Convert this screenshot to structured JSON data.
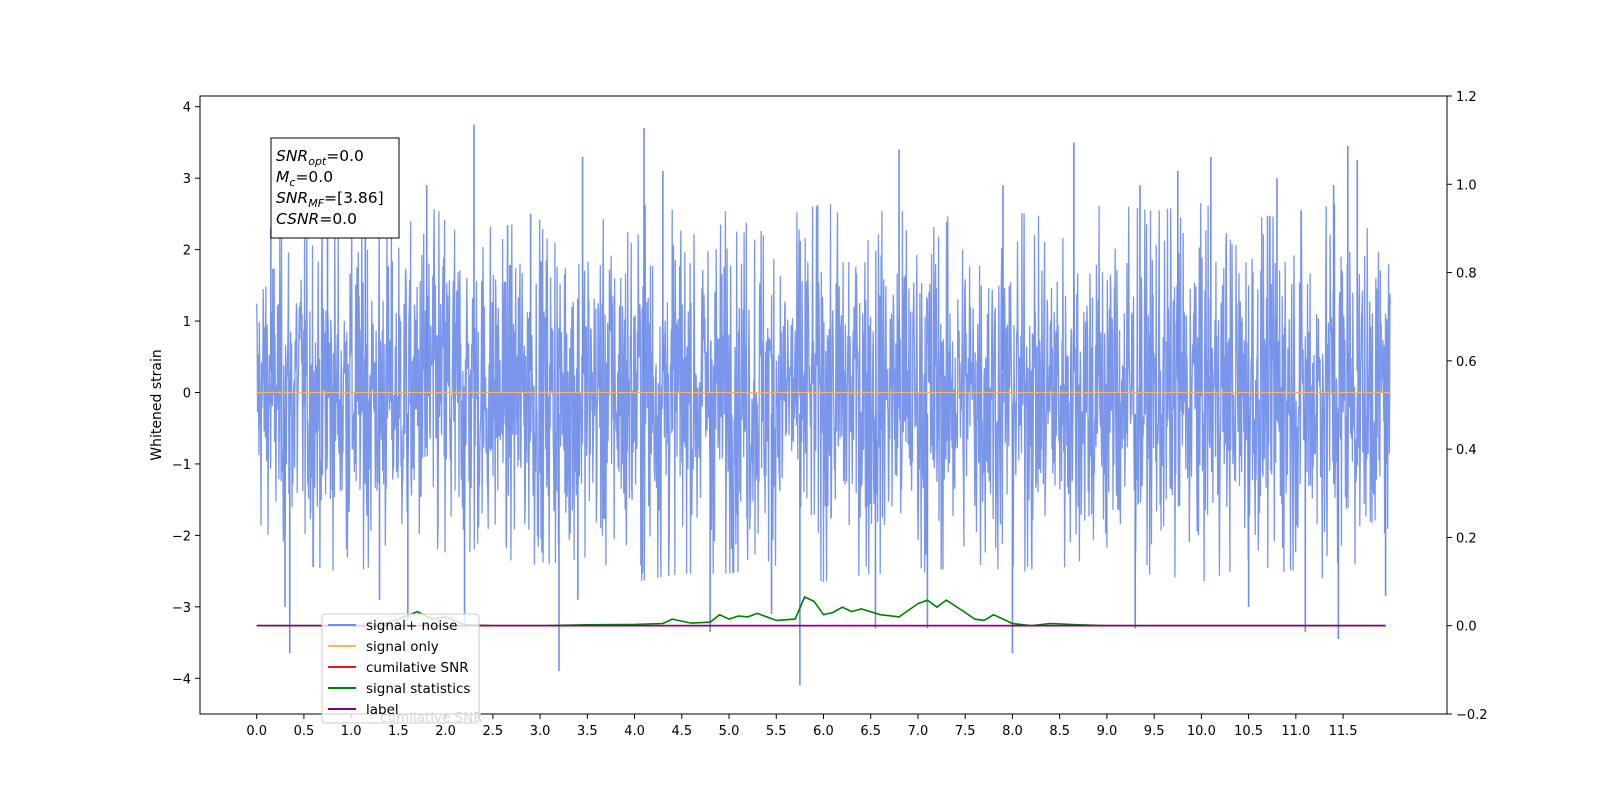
{
  "chart_data": {
    "type": "line",
    "ylabel": "Whitened strain",
    "xlabel": "",
    "xlim": [
      -0.6,
      12.6
    ],
    "ylim": [
      -4.5,
      4.15
    ],
    "y2lim": [
      -0.2,
      1.2
    ],
    "x_ticks": [
      0.0,
      0.5,
      1.0,
      1.5,
      2.0,
      2.5,
      3.0,
      3.5,
      4.0,
      4.5,
      5.0,
      5.5,
      6.0,
      6.5,
      7.0,
      7.5,
      8.0,
      8.5,
      9.0,
      9.5,
      10.0,
      10.5,
      11.0,
      11.5
    ],
    "x_tick_labels": [
      "0.0",
      "0.5",
      "1.0",
      "1.5",
      "2.0",
      "2.5",
      "3.0",
      "3.5",
      "4.0",
      "4.5",
      "5.0",
      "5.5",
      "6.0",
      "6.5",
      "7.0",
      "7.5",
      "8.0",
      "8.5",
      "9.0",
      "9.5",
      "10.0",
      "10.5",
      "11.0",
      "11.5"
    ],
    "y_ticks": [
      4,
      3,
      2,
      1,
      0,
      -1,
      -2,
      -3,
      -4
    ],
    "y_tick_labels": [
      "4",
      "3",
      "2",
      "1",
      "0",
      "−1",
      "−2",
      "−3",
      "−4"
    ],
    "y2_ticks": [
      1.2,
      1.0,
      0.8,
      0.6,
      0.4,
      0.2,
      0.0,
      -0.2
    ],
    "y2_tick_labels": [
      "1.2",
      "1.0",
      "0.8",
      "0.6",
      "0.4",
      "0.2",
      "0.0",
      "−0.2"
    ],
    "annotation": {
      "lines": [
        {
          "base": "SNR",
          "sub": "opt",
          "rest": "=0.0"
        },
        {
          "base": "M",
          "sub": "c",
          "rest": "=0.0"
        },
        {
          "base": "SNR",
          "sub": "MF",
          "rest": "=[3.86]"
        },
        {
          "base": "CSNR",
          "sub": "",
          "rest": "=0.0"
        }
      ]
    },
    "series": [
      {
        "name": "signal+ noise",
        "axis": "left",
        "color": "#6f8de8",
        "description": "dense noisy trace between about -2.5 and 2.5 with spikes",
        "envelope_upper": [
          [
            0.0,
            1.7
          ],
          [
            0.5,
            2.1
          ],
          [
            1.0,
            2.2
          ],
          [
            1.5,
            2.0
          ],
          [
            2.0,
            2.3
          ],
          [
            2.5,
            2.0
          ],
          [
            3.0,
            2.1
          ],
          [
            3.5,
            2.0
          ],
          [
            4.0,
            2.3
          ],
          [
            4.5,
            2.2
          ],
          [
            5.0,
            2.2
          ],
          [
            5.5,
            2.1
          ],
          [
            6.0,
            2.3
          ],
          [
            6.5,
            2.2
          ],
          [
            7.0,
            2.2
          ],
          [
            7.5,
            2.1
          ],
          [
            8.0,
            2.2
          ],
          [
            8.5,
            2.1
          ],
          [
            9.0,
            2.3
          ],
          [
            9.5,
            2.2
          ],
          [
            10.0,
            2.3
          ],
          [
            10.5,
            2.1
          ],
          [
            11.0,
            2.2
          ],
          [
            11.5,
            2.3
          ],
          [
            12.0,
            1.7
          ]
        ],
        "spikes_up": [
          [
            0.15,
            2.3
          ],
          [
            0.75,
            2.4
          ],
          [
            1.15,
            2.2
          ],
          [
            1.8,
            2.9
          ],
          [
            2.3,
            3.75
          ],
          [
            2.9,
            2.5
          ],
          [
            3.45,
            3.3
          ],
          [
            4.1,
            3.7
          ],
          [
            4.3,
            3.1
          ],
          [
            6.8,
            3.4
          ],
          [
            7.9,
            2.9
          ],
          [
            8.65,
            3.5
          ],
          [
            9.35,
            2.9
          ],
          [
            9.75,
            3.1
          ],
          [
            10.1,
            3.3
          ],
          [
            10.8,
            3.0
          ],
          [
            11.4,
            2.9
          ],
          [
            11.55,
            3.45
          ],
          [
            11.65,
            3.25
          ]
        ],
        "spikes_down": [
          [
            0.35,
            -3.65
          ],
          [
            0.3,
            -3.0
          ],
          [
            1.3,
            -2.9
          ],
          [
            1.6,
            -3.2
          ],
          [
            2.2,
            -3.3
          ],
          [
            3.2,
            -3.9
          ],
          [
            3.4,
            -2.9
          ],
          [
            4.8,
            -3.35
          ],
          [
            5.75,
            -4.1
          ],
          [
            5.45,
            -3.1
          ],
          [
            6.55,
            -3.3
          ],
          [
            7.1,
            -3.3
          ],
          [
            8.0,
            -3.65
          ],
          [
            9.3,
            -3.3
          ],
          [
            10.5,
            -3.0
          ],
          [
            11.1,
            -3.35
          ],
          [
            11.45,
            -3.45
          ],
          [
            11.95,
            -2.85
          ]
        ]
      },
      {
        "name": "signal only",
        "axis": "left",
        "color": "#ffb55a",
        "points": [
          [
            0.0,
            0.0
          ],
          [
            12.0,
            0.0
          ]
        ]
      },
      {
        "name": "cumilative SNR",
        "axis": "right",
        "color": "#e41a1c",
        "points": [
          [
            0.0,
            0.0
          ],
          [
            11.95,
            0.0
          ]
        ]
      },
      {
        "name": "signal statistics",
        "axis": "right",
        "color": "#008000",
        "points": [
          [
            0.0,
            0.0
          ],
          [
            1.0,
            0.0
          ],
          [
            1.3,
            0.0
          ],
          [
            1.5,
            0.015
          ],
          [
            1.7,
            0.032
          ],
          [
            1.85,
            0.015
          ],
          [
            2.0,
            0.02
          ],
          [
            2.2,
            0.002
          ],
          [
            2.5,
            0.0
          ],
          [
            3.0,
            0.0
          ],
          [
            3.5,
            0.002
          ],
          [
            4.0,
            0.003
          ],
          [
            4.3,
            0.005
          ],
          [
            4.4,
            0.015
          ],
          [
            4.6,
            0.006
          ],
          [
            4.8,
            0.008
          ],
          [
            4.9,
            0.025
          ],
          [
            5.0,
            0.015
          ],
          [
            5.1,
            0.022
          ],
          [
            5.2,
            0.02
          ],
          [
            5.3,
            0.028
          ],
          [
            5.5,
            0.012
          ],
          [
            5.7,
            0.015
          ],
          [
            5.8,
            0.065
          ],
          [
            5.9,
            0.055
          ],
          [
            6.0,
            0.025
          ],
          [
            6.1,
            0.03
          ],
          [
            6.2,
            0.042
          ],
          [
            6.3,
            0.032
          ],
          [
            6.4,
            0.038
          ],
          [
            6.6,
            0.025
          ],
          [
            6.8,
            0.02
          ],
          [
            7.0,
            0.05
          ],
          [
            7.1,
            0.058
          ],
          [
            7.2,
            0.042
          ],
          [
            7.3,
            0.058
          ],
          [
            7.5,
            0.03
          ],
          [
            7.6,
            0.015
          ],
          [
            7.7,
            0.012
          ],
          [
            7.8,
            0.025
          ],
          [
            8.0,
            0.005
          ],
          [
            8.2,
            0.0
          ],
          [
            8.4,
            0.005
          ],
          [
            8.7,
            0.002
          ],
          [
            9.0,
            0.0
          ],
          [
            10.0,
            0.0
          ],
          [
            11.0,
            0.0
          ],
          [
            11.95,
            0.0
          ]
        ]
      },
      {
        "name": "label",
        "axis": "right",
        "color": "#800080",
        "points": [
          [
            0.0,
            0.0
          ],
          [
            11.95,
            0.0
          ]
        ]
      }
    ],
    "legend": {
      "placement": "lower-left",
      "entries": [
        {
          "label": "signal+ noise",
          "color": "#6f8de8"
        },
        {
          "label": "signal only",
          "color": "#ffb55a"
        },
        {
          "label": "cumilative SNR",
          "color": "#e41a1c"
        },
        {
          "label": "signal statistics",
          "color": "#008000"
        },
        {
          "label": "label",
          "color": "#800080"
        }
      ],
      "ghost_text": "cumilative SNR"
    }
  }
}
